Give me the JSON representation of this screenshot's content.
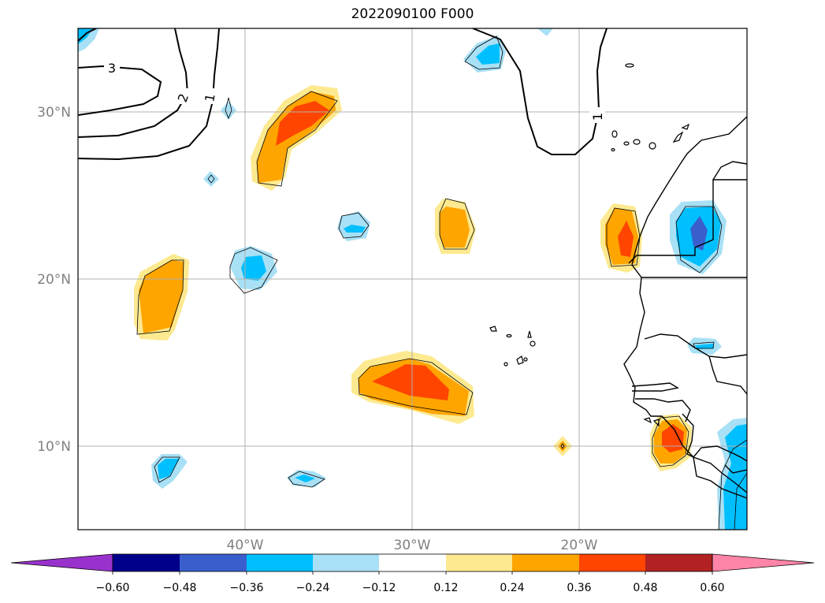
{
  "map": {
    "title": "2022090100 F000",
    "lat_labels": [
      "30°N",
      "20°N",
      "10°N"
    ],
    "lon_labels": [
      "40°W",
      "30°W",
      "20°W"
    ],
    "contour_labels": [
      "3",
      "2",
      "1",
      "1"
    ],
    "extent": {
      "lon_min": -50,
      "lon_max": -10,
      "lat_min": 5,
      "lat_max": 35
    }
  },
  "colorbar": {
    "ticks": [
      "−0.60",
      "−0.48",
      "−0.36",
      "−0.24",
      "−0.12",
      "0.12",
      "0.24",
      "0.36",
      "0.48",
      "0.60"
    ],
    "colors": [
      "#9932cc",
      "#00008b",
      "#3a5fcd",
      "#00bfff",
      "#a8e0f5",
      "#ffffff",
      "#fde98f",
      "#ffa500",
      "#ff4500",
      "#b22222",
      "#ff85a8"
    ]
  },
  "chart_data": {
    "type": "heatmap",
    "title": "2022090100 F000",
    "levels": [
      -0.6,
      -0.48,
      -0.36,
      -0.24,
      -0.12,
      0.12,
      0.24,
      0.36,
      0.48,
      0.6
    ],
    "xlim": [
      -50,
      -10
    ],
    "ylim": [
      5,
      35
    ],
    "contour_levels": [
      1,
      2,
      3
    ]
  }
}
